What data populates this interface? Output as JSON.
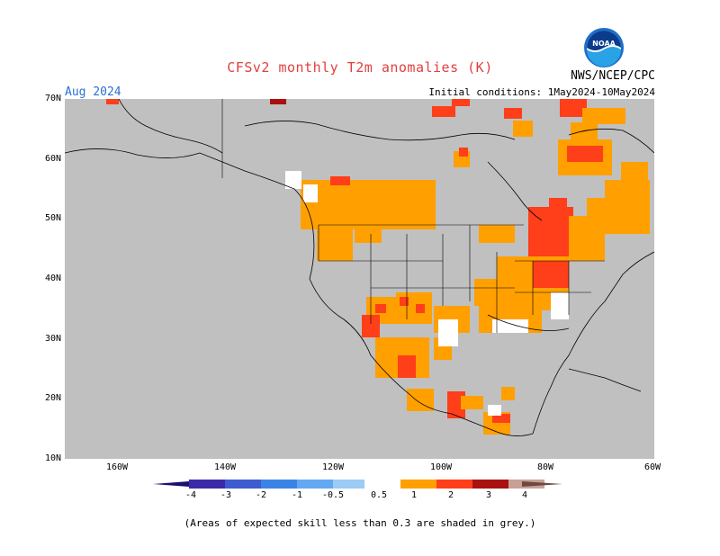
{
  "title": "CFSv2 monthly T2m anomalies (K)",
  "agency": "NWS/NCEP/CPC",
  "month": "Aug 2024",
  "initial_conditions": "Initial conditions: 1May2024-10May2024",
  "footnote": "(Areas of expected skill less than 0.3 are shaded in grey.)",
  "logo_text": "NOAA",
  "lat_labels": [
    "70N",
    "60N",
    "50N",
    "40N",
    "30N",
    "20N",
    "10N"
  ],
  "lon_labels": [
    "160W",
    "140W",
    "120W",
    "100W",
    "80W",
    "60W"
  ],
  "colorbar": {
    "labels": [
      "-4",
      "-3",
      "-2",
      "-1",
      "-0.5",
      "0.5",
      "1",
      "2",
      "3",
      "4"
    ],
    "colors": [
      "#3b2aa8",
      "#3f5bd0",
      "#3b84e6",
      "#63a8f2",
      "#9ccbf5",
      "#ffffff",
      "#ffa000",
      "#ff3e1a",
      "#a8110f",
      "#c9a096"
    ]
  },
  "colors": {
    "skill_grey": "#c0c0c0",
    "warm_05_1": "#ffa000",
    "warm_1_2": "#ff3e1a",
    "warm_2_3": "#a8110f",
    "near_zero": "#ffffff"
  }
}
